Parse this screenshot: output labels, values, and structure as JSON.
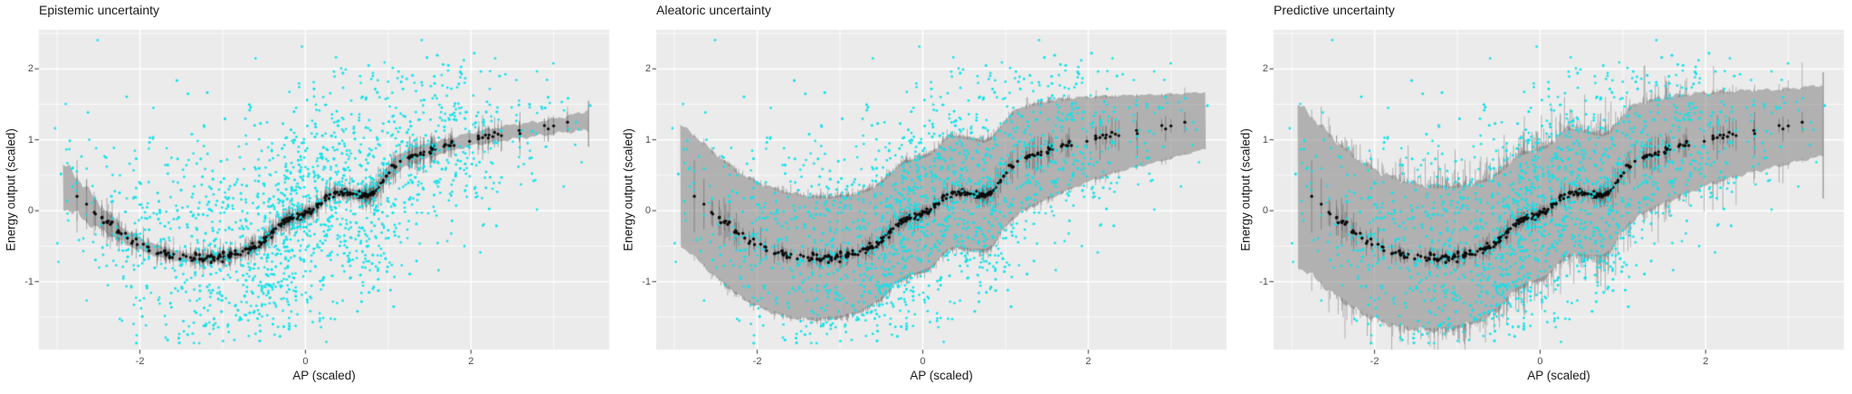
{
  "figure": {
    "description": "Three-panel uncertainty decomposition plot",
    "background": "#FFFFFF"
  },
  "panels": [
    {
      "title": "Epistemic uncertainty",
      "band": "epistemic"
    },
    {
      "title": "Aleatoric uncertainty",
      "band": "aleatoric"
    },
    {
      "title": "Predictive uncertainty",
      "band": "predictive"
    }
  ],
  "axes": {
    "x": {
      "label": "AP (scaled)",
      "ticks": [
        "-2",
        "0",
        "2"
      ],
      "tick_values": [
        -2,
        0,
        2
      ],
      "minor_tick_values": [
        -3,
        -1,
        1,
        3
      ],
      "range": [
        -3.22,
        3.67
      ]
    },
    "y": {
      "label": "Energy output (scaled)",
      "ticks": [
        "2",
        "1",
        "0",
        "-1"
      ],
      "tick_values": [
        2,
        1,
        0,
        -1
      ],
      "minor_tick_values": [
        -1.5,
        -0.5,
        0.5,
        1.5,
        2.5
      ],
      "range": [
        -1.96,
        2.55
      ]
    }
  },
  "style": {
    "panel_background": "#EBEBEB",
    "grid_color": "#FFFFFF",
    "scatter_color": "#12E2EA",
    "mean_color": "#0B0B0B",
    "ribbon_color": "rgba(124,124,124,0.53)",
    "whisker_color": "rgba(70,70,70,0.40)",
    "tick_mark_color": "#333333",
    "tick_text_color": "#4D4D4D",
    "text_color": "#1A1A1A"
  },
  "chart_data": {
    "type": "scatter",
    "layout": "three side-by-side panels sharing identical axes, scatter and mean curve; only the gray uncertainty band differs",
    "panels": [
      "Epistemic uncertainty",
      "Aleatoric uncertainty",
      "Predictive uncertainty"
    ],
    "xlabel": "AP (scaled)",
    "ylabel": "Energy output (scaled)",
    "xlim": [
      -3.22,
      3.67
    ],
    "ylim": [
      -1.96,
      2.55
    ],
    "x_ticks": [
      -2,
      0,
      2
    ],
    "y_ticks": [
      -1,
      0,
      1,
      2
    ],
    "grid": "white major and minor gridlines on gray panel",
    "legend": "none",
    "mean_curve": [
      [
        -2.93,
        0.37
      ],
      [
        -2.8,
        0.24
      ],
      [
        -2.66,
        0.11
      ],
      [
        -2.55,
        -0.03
      ],
      [
        -2.45,
        -0.12
      ],
      [
        -2.35,
        -0.21
      ],
      [
        -2.25,
        -0.31
      ],
      [
        -2.15,
        -0.38
      ],
      [
        -2.05,
        -0.44
      ],
      [
        -1.95,
        -0.5
      ],
      [
        -1.85,
        -0.54
      ],
      [
        -1.7,
        -0.6
      ],
      [
        -1.55,
        -0.64
      ],
      [
        -1.4,
        -0.66
      ],
      [
        -1.25,
        -0.67
      ],
      [
        -1.1,
        -0.66
      ],
      [
        -0.95,
        -0.64
      ],
      [
        -0.8,
        -0.6
      ],
      [
        -0.65,
        -0.53
      ],
      [
        -0.5,
        -0.42
      ],
      [
        -0.4,
        -0.31
      ],
      [
        -0.3,
        -0.18
      ],
      [
        -0.2,
        -0.12
      ],
      [
        -0.1,
        -0.09
      ],
      [
        0.0,
        -0.05
      ],
      [
        0.1,
        0.0
      ],
      [
        0.18,
        0.09
      ],
      [
        0.26,
        0.21
      ],
      [
        0.33,
        0.26
      ],
      [
        0.45,
        0.26
      ],
      [
        0.55,
        0.24
      ],
      [
        0.65,
        0.22
      ],
      [
        0.75,
        0.21
      ],
      [
        0.85,
        0.27
      ],
      [
        0.95,
        0.45
      ],
      [
        1.05,
        0.6
      ],
      [
        1.15,
        0.69
      ],
      [
        1.3,
        0.77
      ],
      [
        1.5,
        0.85
      ],
      [
        1.7,
        0.92
      ],
      [
        1.9,
        0.98
      ],
      [
        2.1,
        1.03
      ],
      [
        2.3,
        1.07
      ],
      [
        2.5,
        1.11
      ],
      [
        2.7,
        1.14
      ],
      [
        2.9,
        1.17
      ],
      [
        3.1,
        1.21
      ],
      [
        3.25,
        1.24
      ],
      [
        3.42,
        1.27
      ]
    ],
    "band_halfwidth": {
      "epistemic": [
        [
          -2.93,
          0.3
        ],
        [
          -2.65,
          0.24
        ],
        [
          -2.45,
          0.16
        ],
        [
          -2.2,
          0.1
        ],
        [
          -1.9,
          0.08
        ],
        [
          -1.5,
          0.065
        ],
        [
          -1.0,
          0.06
        ],
        [
          -0.5,
          0.075
        ],
        [
          -0.2,
          0.07
        ],
        [
          0.1,
          0.06
        ],
        [
          0.45,
          0.055
        ],
        [
          0.75,
          0.07
        ],
        [
          1.0,
          0.11
        ],
        [
          1.25,
          0.11
        ],
        [
          1.6,
          0.09
        ],
        [
          2.0,
          0.09
        ],
        [
          2.4,
          0.1
        ],
        [
          2.8,
          0.1
        ],
        [
          3.1,
          0.11
        ],
        [
          3.3,
          0.12
        ],
        [
          3.42,
          0.16
        ]
      ],
      "aleatoric": [
        [
          -2.93,
          0.85
        ],
        [
          -2.5,
          0.87
        ],
        [
          -2.0,
          0.88
        ],
        [
          -1.5,
          0.88
        ],
        [
          -1.0,
          0.86
        ],
        [
          -0.5,
          0.83
        ],
        [
          0.0,
          0.82
        ],
        [
          0.4,
          0.8
        ],
        [
          0.8,
          0.78
        ],
        [
          1.2,
          0.74
        ],
        [
          1.6,
          0.68
        ],
        [
          2.0,
          0.6
        ],
        [
          2.4,
          0.53
        ],
        [
          2.8,
          0.48
        ],
        [
          3.1,
          0.44
        ],
        [
          3.42,
          0.4
        ]
      ],
      "predictive": [
        [
          -2.93,
          1.14
        ],
        [
          -2.5,
          1.1
        ],
        [
          -2.0,
          1.06
        ],
        [
          -1.5,
          1.03
        ],
        [
          -1.0,
          1.0
        ],
        [
          -0.5,
          0.96
        ],
        [
          0.0,
          0.93
        ],
        [
          0.4,
          0.9
        ],
        [
          0.8,
          0.86
        ],
        [
          1.2,
          0.8
        ],
        [
          1.6,
          0.73
        ],
        [
          2.0,
          0.66
        ],
        [
          2.4,
          0.6
        ],
        [
          2.8,
          0.55
        ],
        [
          3.1,
          0.52
        ],
        [
          3.42,
          0.5
        ]
      ]
    },
    "right_edge_spike": {
      "x": 3.42,
      "epistemic": [
        0.9,
        1.55
      ],
      "predictive": [
        0.17,
        1.95
      ]
    },
    "observations": {
      "marker": "small cyan points, identical cloud in all panels",
      "count": 1700,
      "seed": 11,
      "x_mean": -0.05,
      "x_sd": 1.38,
      "x_range": [
        -3.05,
        3.45
      ],
      "y_model": "mean_curve(x) plus gaussian noise",
      "noise_sd_profile": "aleatoric band half-width",
      "y_range": [
        -1.88,
        2.47
      ]
    },
    "mean_points": {
      "marker": "dense black dots with short gray whiskers forming the mean curve",
      "count": 300,
      "seed": 11,
      "jitter_sd": 0.025,
      "x_range": [
        -2.93,
        3.42
      ]
    }
  }
}
